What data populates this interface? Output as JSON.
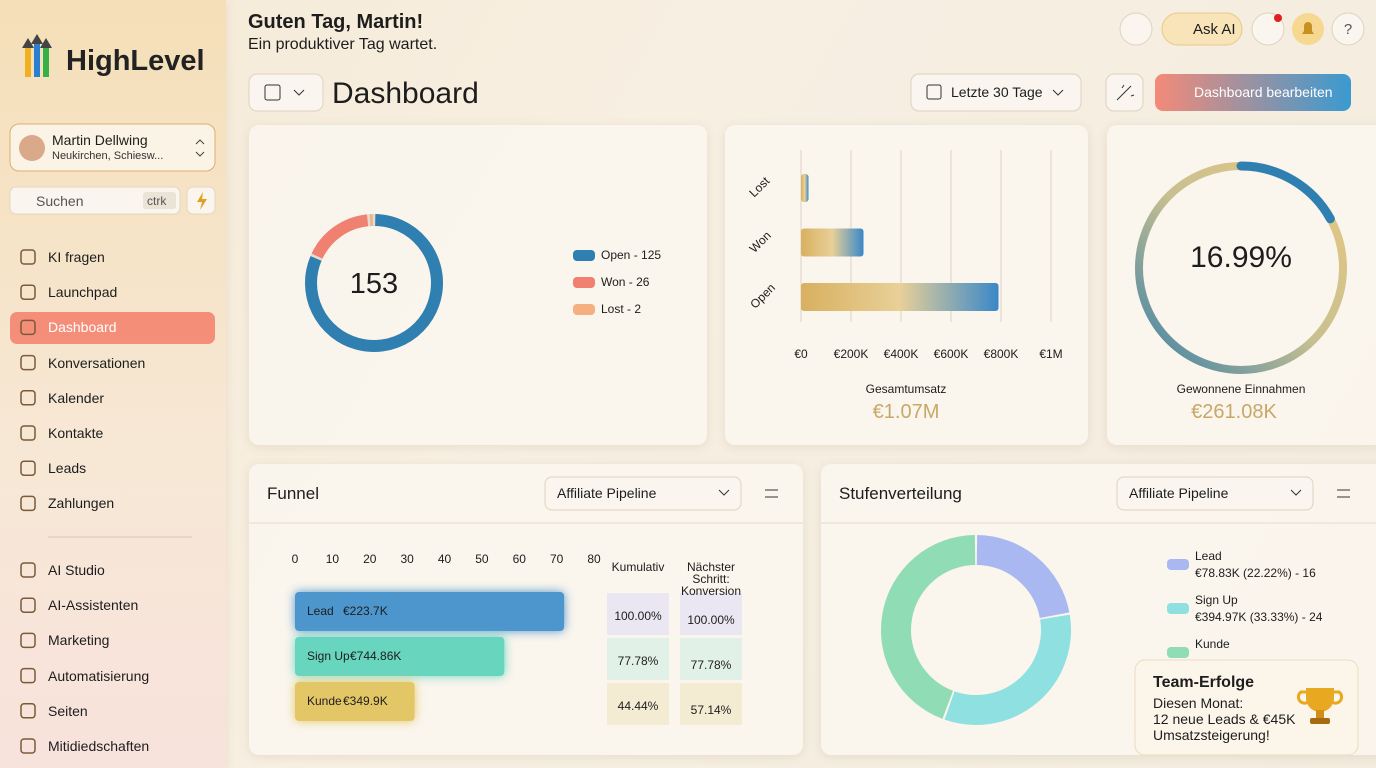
{
  "sidebar": {
    "brand": "HighLevel",
    "account": {
      "name": "Martin Dellwing",
      "location": "Neukirchen, Schiesw..."
    },
    "search": {
      "placeholder": "Suchen",
      "shortcut": "ctrk"
    },
    "nav": [
      "KI fragen",
      "Launchpad",
      "Dashboard",
      "Konversationen",
      "Kalender",
      "Kontakte",
      "Leads",
      "Zahlungen"
    ],
    "active_index": 2,
    "nav2": [
      "AI Studio",
      "AI-Assistenten",
      "Marketing",
      "Automatisierung",
      "Seiten",
      "Mitidiedschaften"
    ]
  },
  "header": {
    "greeting": "Guten Tag, Martin!",
    "subtitle": "Ein produktiver Tag wartet.",
    "title": "Dashboard",
    "ask_ai": "Ask AI",
    "date_range": "Letzte 30 Tage",
    "edit_button": "Dashboard bearbeiten",
    "help": "?"
  },
  "opportunities": {
    "type": "donut",
    "total": 153,
    "values": [
      125,
      26,
      2
    ],
    "value_labels": [
      "Open - 125",
      "Won - 26",
      "Lost - 2"
    ],
    "colors": [
      "#2f7fb0",
      "#f08070",
      "#f6b080"
    ]
  },
  "revenue": {
    "type": "bar",
    "orientation": "horizontal",
    "categories": [
      "Lost",
      "Won",
      "Open"
    ],
    "values": [
      30000,
      250000,
      790000
    ],
    "xlim": [
      0,
      1000000
    ],
    "xticks": [
      {
        "value": 0,
        "label": "€0"
      },
      {
        "value": 200000,
        "label": "€200K"
      },
      {
        "value": 400000,
        "label": "€400K"
      },
      {
        "value": 600000,
        "label": "€600K"
      },
      {
        "value": 800000,
        "label": "€800K"
      },
      {
        "value": 1000000,
        "label": "€1M"
      }
    ],
    "grid": true,
    "total_label": "Gesamtumsatz",
    "total": "€1.07M"
  },
  "win_rate": {
    "type": "gauge",
    "value": 16.99,
    "value_label": "16.99%",
    "total_label": "Gewonnene Einnahmen",
    "total": "€261.08K"
  },
  "funnel": {
    "type": "bar",
    "title": "Funnel",
    "pipeline": "Affiliate Pipeline",
    "categories": [
      "Lead",
      "Sign Up",
      "Kunde"
    ],
    "values": [
      72,
      56,
      32
    ],
    "amounts": [
      "€223.7K",
      "€744.86K",
      "€349.9K"
    ],
    "colors": [
      "#2f86c8",
      "#4fd0b8",
      "#e0c050"
    ],
    "xlim": [
      0,
      80
    ],
    "xticks": [
      0,
      10,
      20,
      30,
      40,
      50,
      60,
      70,
      80
    ],
    "columns": [
      "Kumulativ",
      "Nächster Schritt: Konversion"
    ],
    "cumulative": [
      "100.00%",
      "77.78%",
      "44.44%"
    ],
    "conversion": [
      "100.00%",
      "77.78%",
      "57.14%"
    ]
  },
  "stages": {
    "type": "donut",
    "title": "Stufenverteilung",
    "pipeline": "Affiliate Pipeline",
    "categories": [
      "Lead",
      "Sign Up",
      "Kunde"
    ],
    "values": [
      16,
      24,
      32
    ],
    "details": [
      "€78.83K (22.22%) - 16",
      "€394.97K (33.33%) - 24",
      null
    ],
    "colors": [
      "#a9b8f0",
      "#8fe0e0",
      "#90dcb4"
    ]
  },
  "toast": {
    "title": "Team-Erfolge",
    "lines": [
      "Diesen Monat:",
      "12 neue Leads & €45K",
      "Umsatzsteigerung!"
    ]
  }
}
